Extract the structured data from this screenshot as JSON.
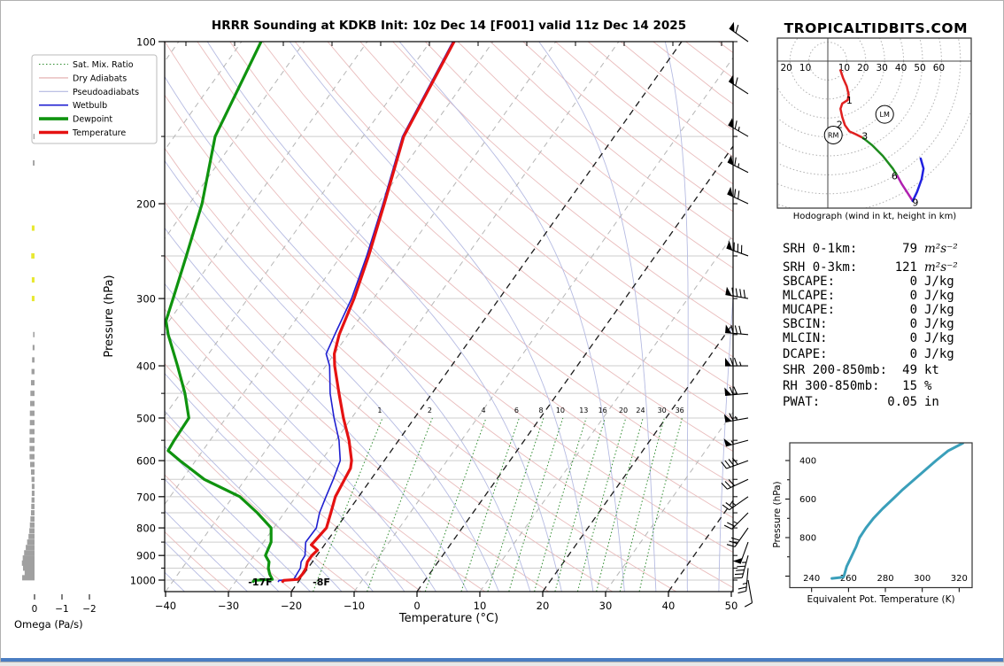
{
  "title": "HRRR Sounding at KDKB Init: 10z Dec 14 [F001] valid 11z Dec 14 2025",
  "watermark": "TROPICALTIDBITS.COM",
  "footer_color": "#4a7dc2",
  "chart_data": [
    {
      "type": "line",
      "name": "skewt_sounding",
      "xlabel": "Temperature (°C)",
      "ylabel": "Pressure (hPa)",
      "x_ticks": [
        -40,
        -30,
        -20,
        -10,
        0,
        10,
        20,
        30,
        40,
        50
      ],
      "p_ticks": [
        100,
        200,
        300,
        400,
        500,
        600,
        700,
        800,
        900,
        1000
      ],
      "p_range": [
        100,
        1050
      ],
      "legend": [
        {
          "label": "Sat. Mix. Ratio",
          "color": "#2e8b2e",
          "style": "dotted",
          "width": 1
        },
        {
          "label": "Dry Adiabats",
          "color": "#e2a9a9",
          "style": "solid",
          "width": 1
        },
        {
          "label": "Pseudoadiabats",
          "color": "#b3b8e0",
          "style": "solid",
          "width": 1
        },
        {
          "label": "Wetbulb",
          "color": "#1f1fd1",
          "style": "solid",
          "width": 1.5
        },
        {
          "label": "Dewpoint",
          "color": "#0f930f",
          "style": "solid",
          "width": 3
        },
        {
          "label": "Temperature",
          "color": "#e51212",
          "style": "solid",
          "width": 3
        }
      ],
      "surface_temp_label": "-8F",
      "surface_dewpoint_label": "-17F",
      "mixing_ratio_values": [
        1,
        2,
        4,
        6,
        8,
        10,
        13,
        16,
        20,
        24,
        30,
        36
      ],
      "series": [
        {
          "name": "Temperature",
          "color": "#e51212",
          "width": 3.2,
          "pressure": [
            1006,
            1001,
            997,
            975,
            950,
            925,
            900,
            880,
            860,
            850,
            800,
            750,
            700,
            650,
            620,
            600,
            550,
            500,
            450,
            400,
            380,
            350,
            300,
            250,
            200,
            150,
            100
          ],
          "values": [
            -22.5,
            -22.5,
            -20.3,
            -20.2,
            -20.3,
            -20.8,
            -20.8,
            -20.5,
            -22.1,
            -22.0,
            -21.6,
            -22.6,
            -23.7,
            -24.2,
            -24.5,
            -25.2,
            -27.9,
            -31.3,
            -34.8,
            -38.6,
            -40.0,
            -41.4,
            -43.1,
            -45.6,
            -49.0,
            -53.5,
            -56.2
          ]
        },
        {
          "name": "Dewpoint",
          "color": "#0f930f",
          "width": 3.2,
          "pressure": [
            1006,
            1001,
            997,
            975,
            950,
            925,
            900,
            850,
            800,
            750,
            700,
            650,
            600,
            575,
            550,
            500,
            450,
            400,
            350,
            330,
            300,
            250,
            200,
            150,
            100
          ],
          "values": [
            -27.2,
            -27.2,
            -24.4,
            -25.4,
            -26.3,
            -26.9,
            -28.2,
            -28.8,
            -30.4,
            -34.3,
            -38.9,
            -46.5,
            -52.5,
            -55.5,
            -55.7,
            -55.9,
            -59.3,
            -63.6,
            -68.6,
            -70.5,
            -71.9,
            -74.6,
            -78.0,
            -83.5,
            -86.9
          ]
        },
        {
          "name": "Wetbulb",
          "color": "#1f1fd1",
          "width": 1.6,
          "pressure": [
            1006,
            1001,
            997,
            950,
            925,
            900,
            850,
            800,
            750,
            700,
            650,
            600,
            550,
            500,
            450,
            400,
            380,
            350,
            300,
            250,
            200,
            150,
            100
          ],
          "values": [
            -23.2,
            -23.2,
            -21.0,
            -21.2,
            -21.8,
            -21.9,
            -23.3,
            -23.2,
            -24.4,
            -25.2,
            -26.0,
            -27.0,
            -29.5,
            -32.8,
            -36.2,
            -39.4,
            -41.3,
            -42.1,
            -43.5,
            -45.9,
            -49.2,
            -53.7,
            -56.4
          ]
        }
      ],
      "winds": [
        {
          "p": 1000,
          "dir": 170,
          "spd": 10
        },
        {
          "p": 950,
          "dir": 185,
          "spd": 25
        },
        {
          "p": 900,
          "dir": 195,
          "spd": 45
        },
        {
          "p": 850,
          "dir": 200,
          "spd": 50
        },
        {
          "p": 800,
          "dir": 215,
          "spd": 30
        },
        {
          "p": 750,
          "dir": 225,
          "spd": 25
        },
        {
          "p": 700,
          "dir": 235,
          "spd": 25
        },
        {
          "p": 650,
          "dir": 245,
          "spd": 30
        },
        {
          "p": 600,
          "dir": 250,
          "spd": 40
        },
        {
          "p": 550,
          "dir": 255,
          "spd": 55
        },
        {
          "p": 500,
          "dir": 260,
          "spd": 65
        },
        {
          "p": 450,
          "dir": 265,
          "spd": 70
        },
        {
          "p": 400,
          "dir": 270,
          "spd": 75
        },
        {
          "p": 350,
          "dir": 275,
          "spd": 80
        },
        {
          "p": 300,
          "dir": 280,
          "spd": 90
        },
        {
          "p": 250,
          "dir": 290,
          "spd": 80
        },
        {
          "p": 200,
          "dir": 295,
          "spd": 70
        },
        {
          "p": 175,
          "dir": 297,
          "spd": 65
        },
        {
          "p": 150,
          "dir": 300,
          "spd": 65
        },
        {
          "p": 125,
          "dir": 303,
          "spd": 60
        },
        {
          "p": 100,
          "dir": 305,
          "spd": 60
        }
      ],
      "omega": {
        "label": "Omega (Pa/s)",
        "ticks": [
          0,
          -1,
          -2
        ],
        "bar_color": "#a0a0a0",
        "highlight_color": "#e8e832",
        "yellow_levels": [
          222,
          250,
          277,
          300
        ],
        "levels": [
          150,
          168,
          222,
          250,
          277,
          300,
          350,
          370,
          390,
          410,
          430,
          450,
          470,
          490,
          510,
          530,
          550,
          570,
          590,
          610,
          630,
          650,
          670,
          690,
          710,
          730,
          750,
          770,
          790,
          810,
          830,
          850,
          870,
          890,
          910,
          930,
          950,
          970,
          990
        ],
        "values": [
          0.04,
          0.06,
          0.1,
          0.12,
          0.1,
          0.1,
          0.05,
          0.07,
          0.09,
          0.11,
          0.13,
          0.15,
          0.16,
          0.17,
          0.17,
          0.18,
          0.18,
          0.18,
          0.18,
          0.16,
          0.13,
          0.11,
          0.1,
          0.1,
          0.11,
          0.12,
          0.13,
          0.15,
          0.17,
          0.19,
          0.22,
          0.27,
          0.32,
          0.38,
          0.43,
          0.46,
          0.42,
          0.36,
          0.45
        ]
      }
    },
    {
      "type": "line",
      "name": "hodograph",
      "caption": "Hodograph (wind in kt, height in km)",
      "ring_interval_kt": 10,
      "ring_labels_left": [
        20,
        10
      ],
      "ring_labels_right": [
        10,
        20,
        30,
        40,
        50,
        60
      ],
      "segments": [
        {
          "color": "#e02020",
          "km": "0-3",
          "points": [
            [
              6.7,
              -4.8
            ],
            [
              8.1,
              -9
            ],
            [
              10,
              -13.3
            ],
            [
              11,
              -17.6
            ],
            [
              10.5,
              -20.5
            ],
            [
              7.6,
              -22.4
            ],
            [
              6.7,
              -25.2
            ],
            [
              7.6,
              -29.5
            ],
            [
              9,
              -33.8
            ],
            [
              11.4,
              -37.1
            ],
            [
              14.8,
              -38.6
            ],
            [
              18.6,
              -40.5
            ]
          ]
        },
        {
          "color": "#1e8c1e",
          "km": "3-6",
          "points": [
            [
              18.6,
              -40.5
            ],
            [
              23.3,
              -44.3
            ],
            [
              29,
              -50
            ],
            [
              34.3,
              -56.7
            ],
            [
              36.7,
              -60.5
            ]
          ]
        },
        {
          "color": "#b020b0",
          "km": "6-9",
          "points": [
            [
              36.7,
              -60.5
            ],
            [
              39,
              -64.8
            ],
            [
              42.4,
              -70
            ],
            [
              44.8,
              -73.8
            ]
          ]
        },
        {
          "color": "#2020e0",
          "km": "9+",
          "points": [
            [
              44.8,
              -73.8
            ],
            [
              47.1,
              -69
            ],
            [
              49.5,
              -62.4
            ],
            [
              50.5,
              -56.7
            ],
            [
              49,
              -51.4
            ]
          ]
        }
      ],
      "height_labels": [
        {
          "label": "1",
          "u": 11.4,
          "v": -22.4
        },
        {
          "label": "2",
          "u": 6.2,
          "v": -35.2
        },
        {
          "label": "3",
          "u": 19.5,
          "v": -41.4
        },
        {
          "label": "6",
          "u": 35.2,
          "v": -62.4
        },
        {
          "label": "9",
          "u": 46.2,
          "v": -76.5
        }
      ],
      "markers": [
        {
          "label": "RM",
          "u": 2.9,
          "v": -39
        },
        {
          "label": "LM",
          "u": 30,
          "v": -28.1
        }
      ]
    },
    {
      "type": "line",
      "name": "theta_e_profile",
      "xlabel": "Equivalent Pot. Temperature (K)",
      "ylabel": "Pressure (hPa)",
      "x_ticks": [
        240,
        260,
        280,
        300,
        320
      ],
      "y_ticks": [
        400,
        600,
        800
      ],
      "color": "#3a9fba",
      "pressure": [
        1012,
        1006,
        1000,
        950,
        900,
        870,
        850,
        800,
        750,
        700,
        650,
        600,
        550,
        500,
        450,
        400,
        350,
        310
      ],
      "values": [
        251,
        257,
        257.5,
        259,
        261.5,
        263,
        264,
        266,
        269.5,
        273.5,
        278.5,
        284,
        289.5,
        295.5,
        301.5,
        307.5,
        314,
        322
      ]
    }
  ],
  "indices": {
    "rows": [
      {
        "label": "SRH 0-1km:",
        "value": "79",
        "unit": "m²s⁻²",
        "color": "#000000",
        "unit_style": "math"
      },
      {
        "label": "SRH 0-3km:",
        "value": "121",
        "unit": "m²s⁻²",
        "color": "#000000",
        "unit_style": "math"
      },
      {
        "label": "SBCAPE:",
        "value": "0",
        "unit": "J/kg",
        "color": "#000000"
      },
      {
        "label": "MLCAPE:",
        "value": "0",
        "unit": "J/kg",
        "color": "#000000"
      },
      {
        "label": "MUCAPE:",
        "value": "0",
        "unit": "J/kg",
        "color": "#000000"
      },
      {
        "label": "SBCIN:",
        "value": "0",
        "unit": "J/kg",
        "color": "#000000"
      },
      {
        "label": "MLCIN:",
        "value": "0",
        "unit": "J/kg",
        "color": "#000000"
      },
      {
        "label": "DCAPE:",
        "value": "0",
        "unit": "J/kg",
        "color": "#000000"
      },
      {
        "label": "SHR 200-850mb:",
        "value": "49",
        "unit": "kt",
        "color": "#b03030"
      },
      {
        "label": "RH 300-850mb:",
        "value": "15",
        "unit": "%",
        "color": "#a5821c"
      },
      {
        "label": "PWAT:",
        "value": "0.05",
        "unit": "in",
        "color": "#000000"
      }
    ]
  }
}
